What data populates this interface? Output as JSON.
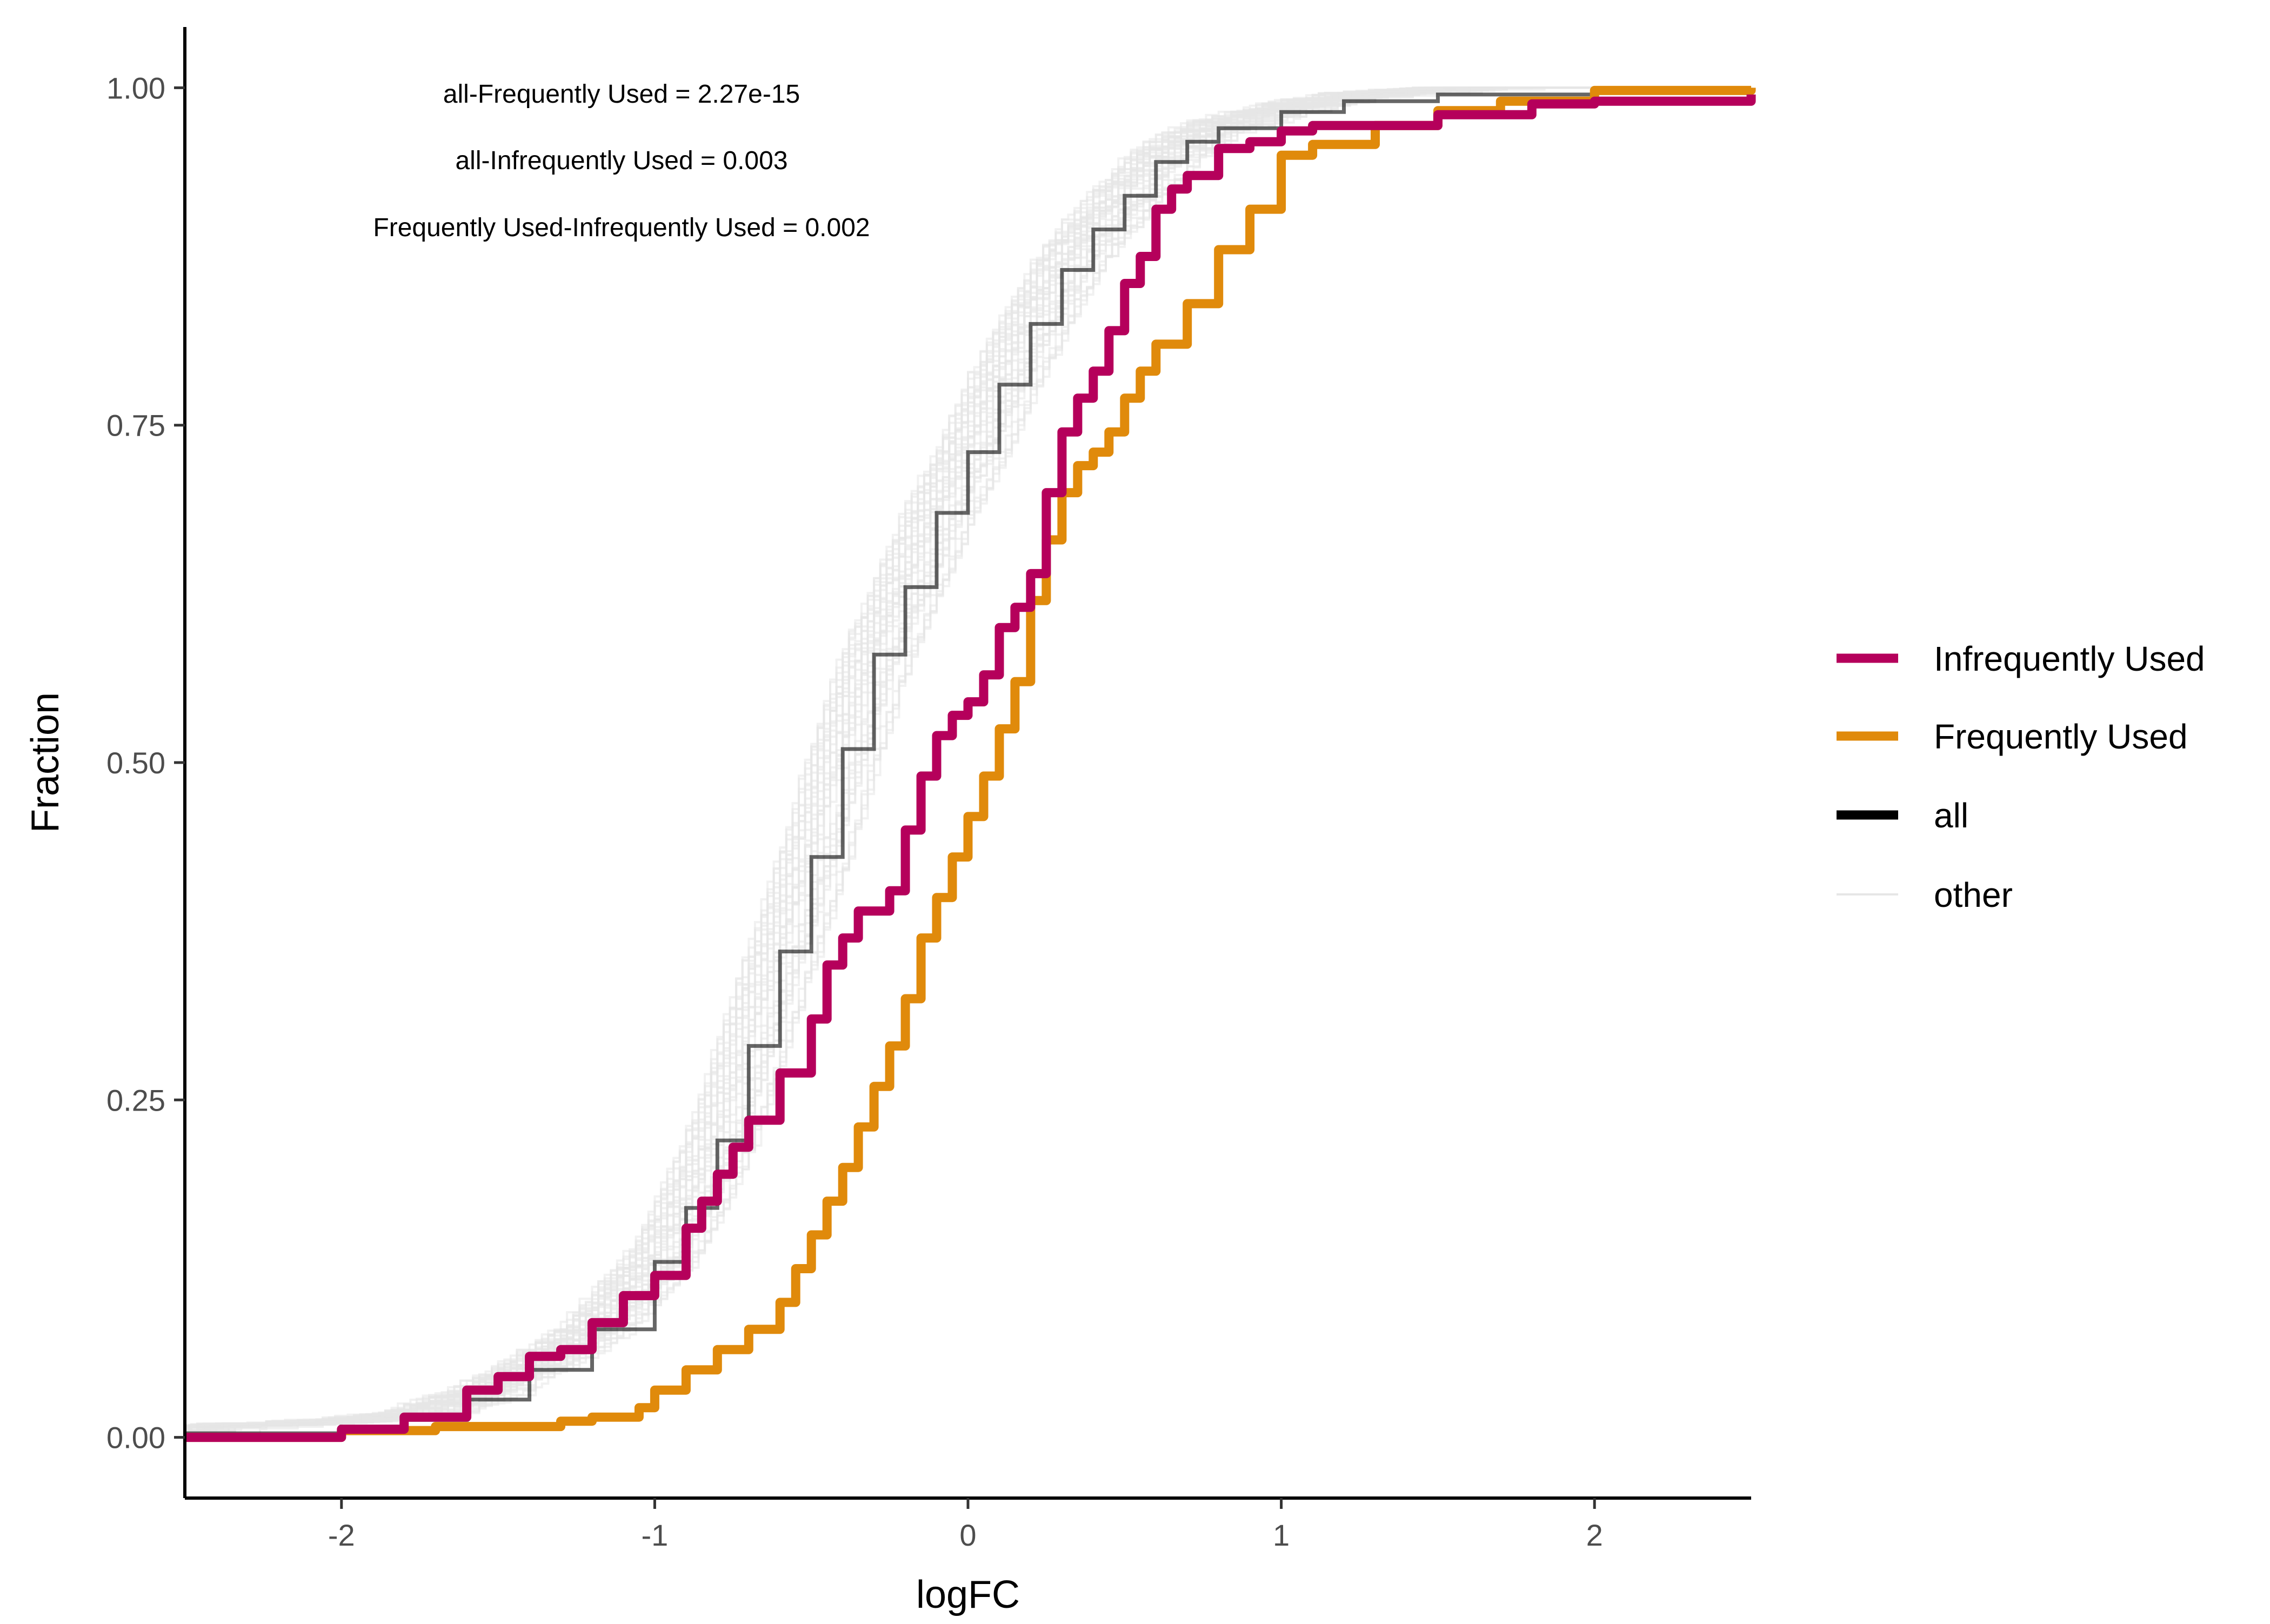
{
  "chart_data": {
    "type": "line",
    "xlabel": "logFC",
    "ylabel": "Fraction",
    "xlim": [
      -2.5,
      2.5
    ],
    "ylim": [
      -0.045,
      1.045
    ],
    "x_ticks": [
      {
        "value": -2,
        "label": "-2"
      },
      {
        "value": -1,
        "label": "-1"
      },
      {
        "value": 0,
        "label": "0"
      },
      {
        "value": 1,
        "label": "1"
      },
      {
        "value": 2,
        "label": "2"
      }
    ],
    "y_ticks": [
      {
        "value": 0,
        "label": "0.00"
      },
      {
        "value": 0.25,
        "label": "0.25"
      },
      {
        "value": 0.5,
        "label": "0.50"
      },
      {
        "value": 0.75,
        "label": "0.75"
      },
      {
        "value": 1,
        "label": "1.00"
      }
    ],
    "grid": false,
    "legend_position": "right",
    "annotations": [
      "all-Frequently Used = 2.27e-15",
      "all-Infrequently Used = 0.003",
      "Frequently Used-Infrequently Used = 0.002"
    ],
    "legend": [
      {
        "label": "Infrequently Used",
        "color": "#B5005B"
      },
      {
        "label": "Frequently Used",
        "color": "#E08A0B"
      },
      {
        "label": "all",
        "color": "#000000"
      },
      {
        "label": "other",
        "color": "#E6E6E6"
      }
    ],
    "other_series_count": 40,
    "series": [
      {
        "key": "all",
        "color": "#000000",
        "points": [
          [
            -2.5,
            0.003
          ],
          [
            -2.0,
            0.008
          ],
          [
            -1.8,
            0.013
          ],
          [
            -1.6,
            0.028
          ],
          [
            -1.4,
            0.05
          ],
          [
            -1.2,
            0.08
          ],
          [
            -1.0,
            0.13
          ],
          [
            -0.9,
            0.17
          ],
          [
            -0.8,
            0.22
          ],
          [
            -0.7,
            0.29
          ],
          [
            -0.6,
            0.36
          ],
          [
            -0.5,
            0.43
          ],
          [
            -0.4,
            0.51
          ],
          [
            -0.3,
            0.58
          ],
          [
            -0.2,
            0.63
          ],
          [
            -0.1,
            0.685
          ],
          [
            0.0,
            0.73
          ],
          [
            0.1,
            0.78
          ],
          [
            0.2,
            0.825
          ],
          [
            0.3,
            0.865
          ],
          [
            0.4,
            0.895
          ],
          [
            0.5,
            0.92
          ],
          [
            0.6,
            0.945
          ],
          [
            0.7,
            0.96
          ],
          [
            0.8,
            0.97
          ],
          [
            1.0,
            0.982
          ],
          [
            1.2,
            0.99
          ],
          [
            1.5,
            0.995
          ],
          [
            2.0,
            0.998
          ],
          [
            2.5,
            1.0
          ]
        ]
      },
      {
        "key": "Frequently Used",
        "color": "#E08A0B",
        "points": [
          [
            -2.5,
            0.0
          ],
          [
            -2.0,
            0.005
          ],
          [
            -1.7,
            0.008
          ],
          [
            -1.3,
            0.012
          ],
          [
            -1.2,
            0.015
          ],
          [
            -1.05,
            0.022
          ],
          [
            -1.0,
            0.035
          ],
          [
            -0.9,
            0.05
          ],
          [
            -0.8,
            0.065
          ],
          [
            -0.7,
            0.08
          ],
          [
            -0.6,
            0.1
          ],
          [
            -0.55,
            0.125
          ],
          [
            -0.5,
            0.15
          ],
          [
            -0.45,
            0.175
          ],
          [
            -0.4,
            0.2
          ],
          [
            -0.35,
            0.23
          ],
          [
            -0.3,
            0.26
          ],
          [
            -0.25,
            0.29
          ],
          [
            -0.2,
            0.325
          ],
          [
            -0.15,
            0.37
          ],
          [
            -0.1,
            0.4
          ],
          [
            -0.05,
            0.43
          ],
          [
            0.0,
            0.46
          ],
          [
            0.05,
            0.49
          ],
          [
            0.1,
            0.525
          ],
          [
            0.15,
            0.56
          ],
          [
            0.2,
            0.62
          ],
          [
            0.25,
            0.665
          ],
          [
            0.3,
            0.7
          ],
          [
            0.35,
            0.72
          ],
          [
            0.4,
            0.73
          ],
          [
            0.45,
            0.745
          ],
          [
            0.5,
            0.77
          ],
          [
            0.55,
            0.79
          ],
          [
            0.6,
            0.81
          ],
          [
            0.7,
            0.84
          ],
          [
            0.8,
            0.88
          ],
          [
            0.9,
            0.91
          ],
          [
            1.0,
            0.95
          ],
          [
            1.1,
            0.958
          ],
          [
            1.3,
            0.972
          ],
          [
            1.5,
            0.983
          ],
          [
            1.7,
            0.99
          ],
          [
            2.0,
            0.998
          ],
          [
            2.5,
            1.0
          ]
        ]
      },
      {
        "key": "Infrequently Used",
        "color": "#B5005B",
        "points": [
          [
            -2.5,
            0.0
          ],
          [
            -2.0,
            0.006
          ],
          [
            -1.8,
            0.015
          ],
          [
            -1.6,
            0.035
          ],
          [
            -1.5,
            0.045
          ],
          [
            -1.4,
            0.06
          ],
          [
            -1.3,
            0.065
          ],
          [
            -1.2,
            0.085
          ],
          [
            -1.1,
            0.105
          ],
          [
            -1.0,
            0.12
          ],
          [
            -0.9,
            0.155
          ],
          [
            -0.85,
            0.175
          ],
          [
            -0.8,
            0.195
          ],
          [
            -0.75,
            0.215
          ],
          [
            -0.7,
            0.235
          ],
          [
            -0.6,
            0.27
          ],
          [
            -0.5,
            0.31
          ],
          [
            -0.45,
            0.35
          ],
          [
            -0.4,
            0.37
          ],
          [
            -0.35,
            0.39
          ],
          [
            -0.25,
            0.405
          ],
          [
            -0.2,
            0.45
          ],
          [
            -0.15,
            0.49
          ],
          [
            -0.1,
            0.52
          ],
          [
            -0.05,
            0.535
          ],
          [
            0.0,
            0.545
          ],
          [
            0.05,
            0.565
          ],
          [
            0.1,
            0.6
          ],
          [
            0.15,
            0.615
          ],
          [
            0.2,
            0.64
          ],
          [
            0.25,
            0.7
          ],
          [
            0.3,
            0.745
          ],
          [
            0.35,
            0.77
          ],
          [
            0.4,
            0.79
          ],
          [
            0.45,
            0.82
          ],
          [
            0.5,
            0.855
          ],
          [
            0.55,
            0.875
          ],
          [
            0.6,
            0.91
          ],
          [
            0.65,
            0.925
          ],
          [
            0.7,
            0.935
          ],
          [
            0.8,
            0.955
          ],
          [
            0.9,
            0.96
          ],
          [
            1.0,
            0.968
          ],
          [
            1.1,
            0.972
          ],
          [
            1.5,
            0.98
          ],
          [
            1.8,
            0.988
          ],
          [
            2.0,
            0.99
          ],
          [
            2.5,
            0.995
          ]
        ]
      }
    ]
  }
}
